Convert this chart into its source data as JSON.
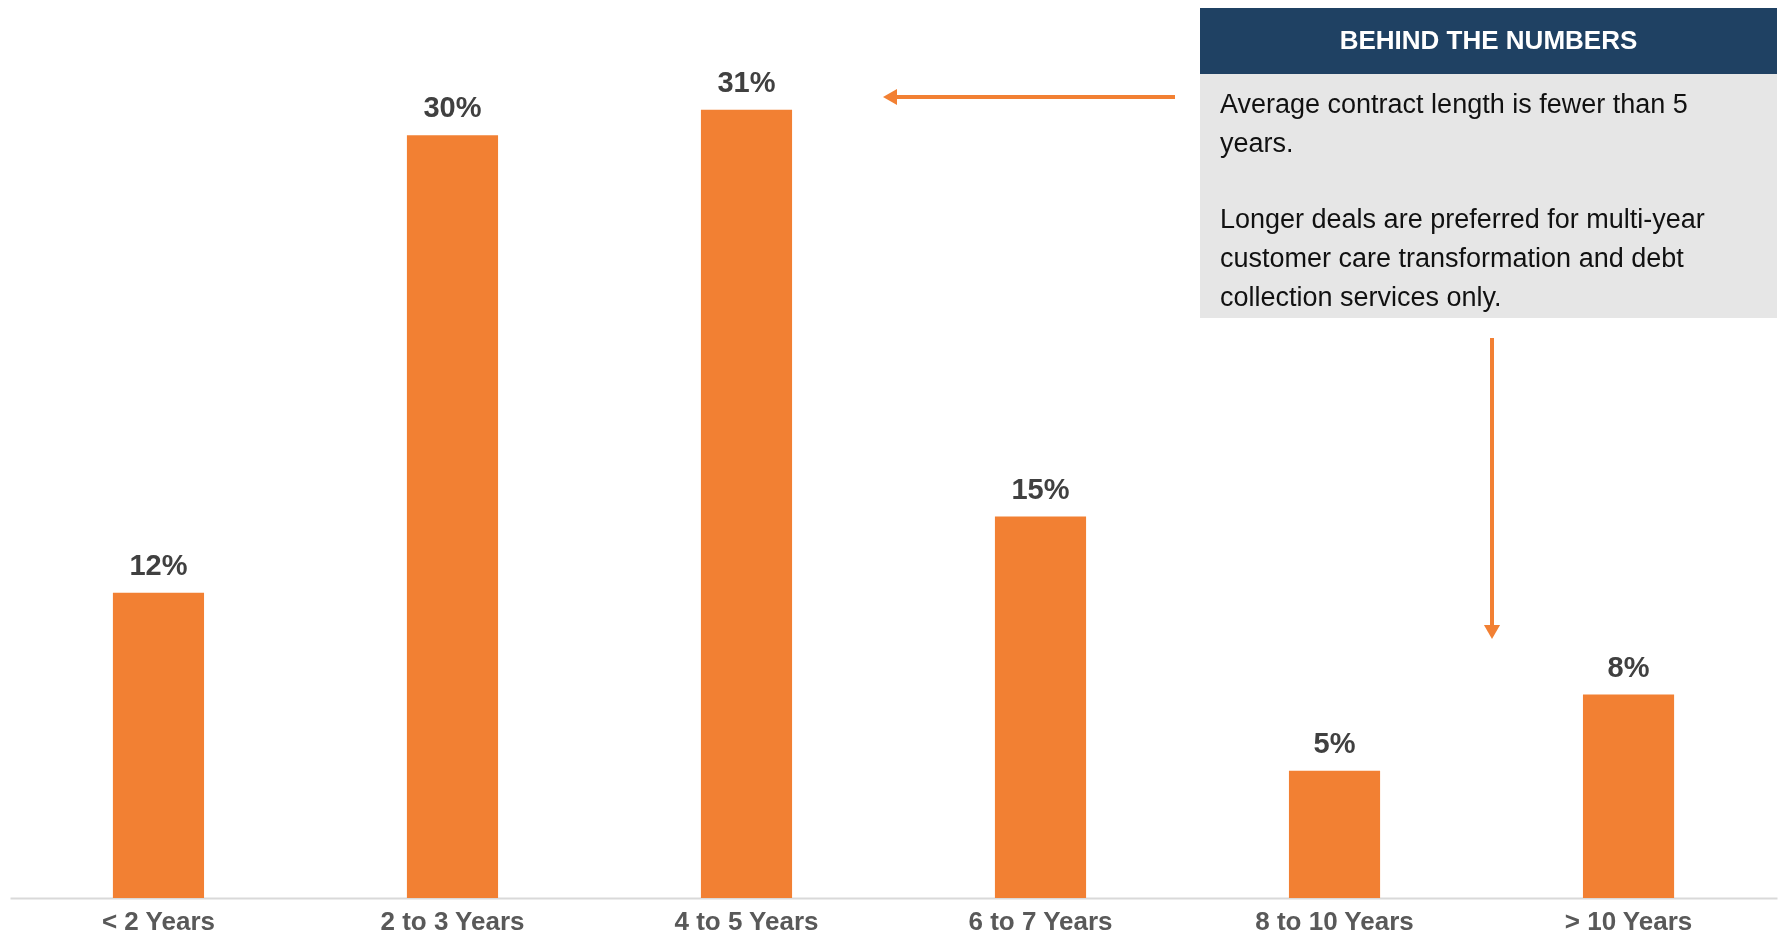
{
  "chart_data": {
    "type": "bar",
    "categories": [
      "< 2 Years",
      "2 to 3 Years",
      "4 to 5 Years",
      "6 to 7 Years",
      "8 to 10 Years",
      "> 10 Years"
    ],
    "values": [
      12,
      30,
      31,
      15,
      5,
      8
    ],
    "value_labels": [
      "12%",
      "30%",
      "31%",
      "15%",
      "5%",
      "8%"
    ],
    "color": "#f28033",
    "annotations": [
      "BEHIND THE NUMBERS",
      "Average contract length is fewer than 5 years.",
      "Longer deals are preferred for multi-year customer care transformation and debt collection services only."
    ]
  }
}
